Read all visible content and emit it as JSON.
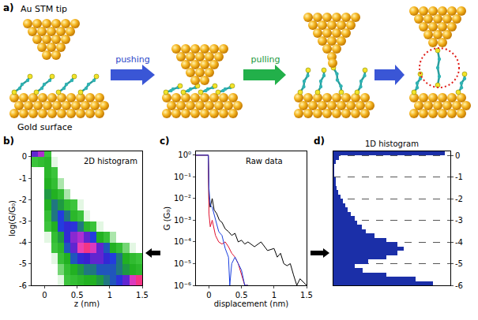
{
  "diagram": {
    "label": "a)",
    "tip": "Au STM tip",
    "surface": "Gold surface",
    "steps": [
      "pushing",
      "pulling"
    ]
  },
  "chart_data": [
    {
      "type": "heatmap",
      "label": "b)",
      "title": "2D histogram",
      "xlabel": "z (nm)",
      "ylabel": "log(G/G₀)",
      "x": [
        -0.15,
        -0.05,
        0.05,
        0.15,
        0.25,
        0.35,
        0.45,
        0.55,
        0.65,
        0.75,
        0.85,
        0.95,
        1.05,
        1.15,
        1.25,
        1.35,
        1.45
      ],
      "y": [
        -5.75,
        -5.25,
        -4.75,
        -4.25,
        -3.75,
        -3.25,
        -2.75,
        -2.25,
        -1.75,
        -1.25,
        -0.75,
        -0.25,
        0.25
      ],
      "z": [
        [
          0,
          0,
          0,
          0,
          2,
          5,
          10,
          15,
          20,
          20,
          25,
          30,
          35,
          45,
          60,
          80,
          90
        ],
        [
          0,
          0,
          0,
          0,
          4,
          10,
          20,
          25,
          30,
          30,
          35,
          35,
          35,
          30,
          25,
          20,
          15
        ],
        [
          0,
          0,
          0,
          2,
          8,
          20,
          35,
          50,
          55,
          60,
          60,
          50,
          40,
          30,
          20,
          12,
          6
        ],
        [
          0,
          0,
          0,
          5,
          15,
          35,
          60,
          85,
          90,
          80,
          60,
          35,
          20,
          10,
          4,
          2,
          0
        ],
        [
          0,
          0,
          2,
          10,
          25,
          50,
          65,
          70,
          60,
          40,
          20,
          8,
          3,
          0,
          0,
          0,
          0
        ],
        [
          0,
          0,
          5,
          20,
          40,
          50,
          45,
          30,
          15,
          6,
          2,
          0,
          0,
          0,
          0,
          0,
          0
        ],
        [
          0,
          0,
          10,
          30,
          40,
          30,
          15,
          6,
          2,
          0,
          0,
          0,
          0,
          0,
          0,
          0,
          0
        ],
        [
          0,
          0,
          20,
          30,
          25,
          12,
          5,
          2,
          0,
          0,
          0,
          0,
          0,
          0,
          0,
          0,
          0
        ],
        [
          0,
          0,
          25,
          20,
          10,
          3,
          0,
          0,
          0,
          0,
          0,
          0,
          0,
          0,
          0,
          0,
          0
        ],
        [
          0,
          0,
          20,
          10,
          3,
          0,
          0,
          0,
          0,
          0,
          0,
          0,
          0,
          0,
          0,
          0,
          0
        ],
        [
          0,
          0,
          15,
          5,
          0,
          0,
          0,
          0,
          0,
          0,
          0,
          0,
          0,
          0,
          0,
          0,
          0
        ],
        [
          5,
          10,
          15,
          2,
          0,
          0,
          0,
          0,
          0,
          0,
          0,
          0,
          0,
          0,
          0,
          0,
          0
        ],
        [
          60,
          70,
          5,
          0,
          0,
          0,
          0,
          0,
          0,
          0,
          0,
          0,
          0,
          0,
          0,
          0,
          0
        ]
      ],
      "zlim": [
        0,
        100
      ],
      "xlim": [
        -0.2,
        1.5
      ],
      "xticks": [
        0,
        0.5,
        1,
        1.5
      ],
      "ylim": [
        -6,
        0.25
      ],
      "yticks": [
        0,
        -1,
        -2,
        -3,
        -4,
        -5,
        -6
      ],
      "grid": false
    },
    {
      "type": "line",
      "label": "c)",
      "title": "Raw data",
      "xlabel": "displacement (nm)",
      "ylabel": "G (G₀)",
      "log": "y",
      "series": [
        {
          "color": "#000000",
          "x": [
            -0.2,
            -0.01,
            0,
            0.02,
            0.05,
            0.08,
            0.12,
            0.16,
            0.2,
            0.25,
            0.3,
            0.35,
            0.4,
            0.45,
            0.5,
            0.55,
            0.6,
            0.7,
            0.8,
            0.9,
            1.0,
            1.05,
            1.1,
            1.15,
            1.2,
            1.25,
            1.3,
            1.35,
            1.4,
            1.5
          ],
          "values": [
            1,
            1,
            0.01,
            0.004,
            0.01,
            0.003,
            0.002,
            0.001,
            0.0008,
            0.0004,
            0.0003,
            0.0002,
            0.00025,
            0.0001,
            0.00012,
            8e-05,
            0.0001,
            6e-05,
            0.0001,
            4e-05,
            5e-05,
            2e-05,
            3e-05,
            1e-05,
            8e-06,
            1e-05,
            3e-06,
            1e-06,
            2e-06,
            1e-06
          ]
        },
        {
          "color": "#e0102e",
          "x": [
            -0.2,
            -0.01,
            0,
            0.02,
            0.05,
            0.1,
            0.15,
            0.2,
            0.25,
            0.3,
            0.35,
            0.4,
            0.45,
            0.5,
            0.55,
            0.6
          ],
          "values": [
            1,
            1,
            0.002,
            0.0005,
            0.001,
            0.0002,
            0.0001,
            8e-05,
            0.0001,
            6e-05,
            3e-05,
            2e-05,
            1e-05,
            3e-06,
            1e-06,
            1e-06
          ]
        },
        {
          "color": "#1a3fe0",
          "x": [
            -0.2,
            -0.01,
            0,
            0.02,
            0.05,
            0.1,
            0.15,
            0.2,
            0.25,
            0.3,
            0.32,
            0.35,
            0.4,
            0.45,
            0.5,
            0.55,
            0.6
          ],
          "values": [
            1,
            1,
            0.03,
            0.005,
            0.004,
            0.001,
            0.0003,
            0.0002,
            5e-05,
            2e-05,
            1e-06,
            1e-05,
            2e-05,
            1e-05,
            5e-06,
            1e-06,
            1e-06
          ]
        }
      ],
      "xlim": [
        -0.2,
        1.5
      ],
      "xticks": [
        0,
        0.5,
        1,
        1.5
      ],
      "ylim": [
        1e-06,
        1.5
      ],
      "yticks": [
        {
          "value": 1,
          "label": "10⁰"
        },
        {
          "value": 0.1,
          "label": "10⁻¹"
        },
        {
          "value": 0.01,
          "label": "10⁻²"
        },
        {
          "value": 0.001,
          "label": "10⁻³"
        },
        {
          "value": 0.0001,
          "label": "10⁻⁴"
        },
        {
          "value": 1e-05,
          "label": "10⁻⁵"
        },
        {
          "value": 1e-06,
          "label": "10⁻⁶"
        }
      ],
      "grid": false
    },
    {
      "type": "histogram",
      "label": "d)",
      "title": "1D histogram",
      "orientation": "horizontal",
      "color": "#1b2fa8",
      "bins": [
        -6,
        -5.8,
        -5.6,
        -5.4,
        -5.2,
        -5,
        -4.8,
        -4.6,
        -4.4,
        -4.2,
        -4,
        -3.8,
        -3.6,
        -3.4,
        -3.2,
        -3,
        -2.8,
        -2.6,
        -2.4,
        -2.2,
        -2,
        -1.8,
        -1.6,
        -1.4,
        -1.2,
        -1,
        -0.8,
        -0.6,
        -0.4,
        -0.2,
        0,
        0.2
      ],
      "counts": [
        85,
        70,
        45,
        25,
        18,
        30,
        45,
        55,
        60,
        55,
        45,
        35,
        28,
        24,
        20,
        18,
        15,
        12,
        10,
        8,
        6,
        4,
        3,
        2,
        2,
        1,
        1,
        1,
        2,
        5,
        95
      ],
      "xlim": [
        0,
        100
      ],
      "ylim": [
        -6,
        0.2
      ],
      "yticks": [
        0,
        -1,
        -2,
        -3,
        -4,
        -5,
        -6
      ],
      "grid": true,
      "tick_labels": "y"
    }
  ]
}
